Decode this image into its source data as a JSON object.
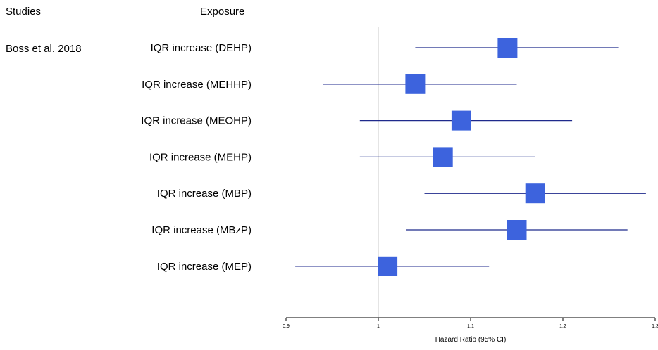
{
  "headers": {
    "studies": "Studies",
    "exposure": "Exposure"
  },
  "study_label": "Boss et al. 2018",
  "colors": {
    "marker": "#3D63DD",
    "ci_line": "#1F2A8C",
    "ref_line": "#C8C8C8",
    "axis": "#000000"
  },
  "chart_data": {
    "type": "forest",
    "title": "",
    "xlabel": "Hazard Ratio (95% CI)",
    "xlim": [
      0.9,
      1.3
    ],
    "xticks": [
      0.9,
      1,
      1.1,
      1.2,
      1.3
    ],
    "xtick_labels": [
      "0.9",
      "1",
      "1.1",
      "1.2",
      "1.3"
    ],
    "reference_value": 1,
    "rows": [
      {
        "study": "Boss et al. 2018",
        "label": "IQR increase (DEHP)",
        "estimate": 1.14,
        "lower": 1.04,
        "upper": 1.26
      },
      {
        "study": "",
        "label": "IQR increase (MEHHP)",
        "estimate": 1.04,
        "lower": 0.94,
        "upper": 1.15
      },
      {
        "study": "",
        "label": "IQR increase (MEOHP)",
        "estimate": 1.09,
        "lower": 0.98,
        "upper": 1.21
      },
      {
        "study": "",
        "label": "IQR increase (MEHP)",
        "estimate": 1.07,
        "lower": 0.98,
        "upper": 1.17
      },
      {
        "study": "",
        "label": "IQR increase (MBP)",
        "estimate": 1.17,
        "lower": 1.05,
        "upper": 1.29
      },
      {
        "study": "",
        "label": "IQR increase (MBzP)",
        "estimate": 1.15,
        "lower": 1.03,
        "upper": 1.27
      },
      {
        "study": "",
        "label": "IQR increase (MEP)",
        "estimate": 1.01,
        "lower": 0.91,
        "upper": 1.12
      }
    ]
  }
}
